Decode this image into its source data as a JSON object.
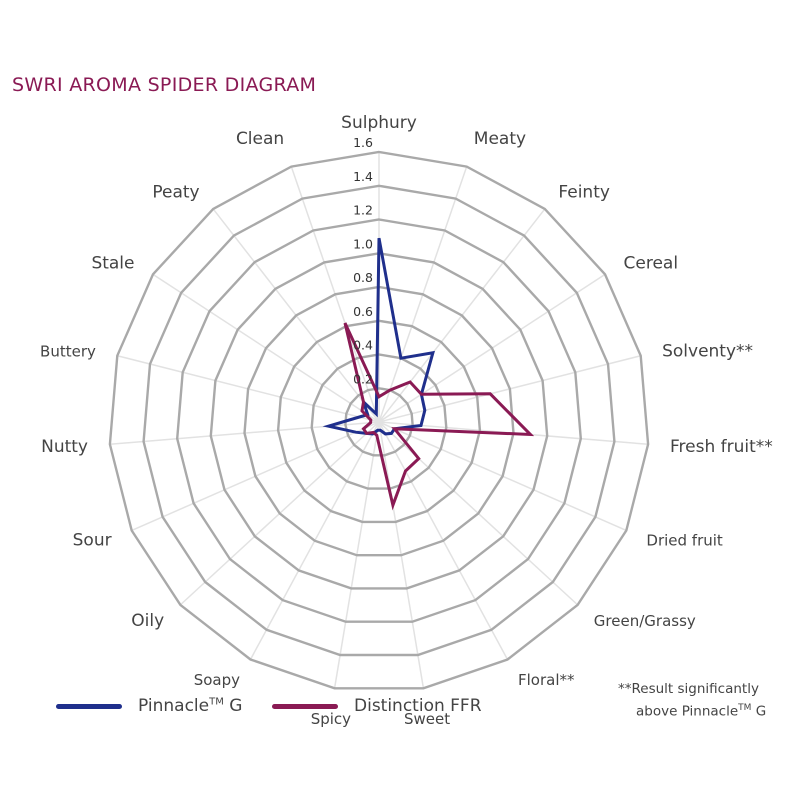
{
  "title": "SWRI AROMA SPIDER DIAGRAM",
  "chart_data": {
    "type": "radar",
    "title": "SWRI AROMA SPIDER DIAGRAM",
    "categories": [
      "Sulphury",
      "Meaty",
      "Feinty",
      "Cereal",
      "Solventy**",
      "Fresh fruit**",
      "Dried fruit",
      "Green/Grassy",
      "Floral**",
      "Sweet",
      "Spicy",
      "Soapy",
      "Oily",
      "Sour",
      "Nutty",
      "Buttery",
      "Stale",
      "Peaty",
      "Clean"
    ],
    "rlim": [
      0,
      1.6
    ],
    "ticks": [
      "0.2",
      "0.4",
      "0.6",
      "0.8",
      "1.0",
      "1.2",
      "1.4",
      "1.6"
    ],
    "tick_values": [
      0.2,
      0.4,
      0.6,
      0.8,
      1.0,
      1.2,
      1.4,
      1.6
    ],
    "series": [
      {
        "name": "Pinnacle™ G",
        "color": "#1f2f8c",
        "values": [
          1.09,
          0.4,
          0.52,
          0.3,
          0.28,
          0.25,
          0.1,
          0.1,
          0.08,
          0.05,
          0.05,
          0.08,
          0.1,
          0.15,
          0.3,
          0.12,
          0.08,
          0.15,
          0.05
        ]
      },
      {
        "name": "Distinction FFR",
        "color": "#8a1a54",
        "values": [
          0.15,
          0.2,
          0.3,
          0.3,
          0.68,
          0.9,
          0.1,
          0.32,
          0.33,
          0.5,
          0.08,
          0.07,
          0.1,
          0.1,
          0.05,
          0.05,
          0.12,
          0.15,
          0.62
        ]
      }
    ],
    "grid": true
  },
  "legend": {
    "series1": {
      "name": "Pinnacle",
      "tm": "TM",
      "suffix": " G",
      "color": "#1f2f8c"
    },
    "series2": {
      "name": "Distinction FFR",
      "color": "#8a1a54"
    }
  },
  "footnote": {
    "line1": "**Result significantly",
    "line2_pre": "above Pinnacle",
    "line2_tm": "TM",
    "line2_post": " G"
  }
}
